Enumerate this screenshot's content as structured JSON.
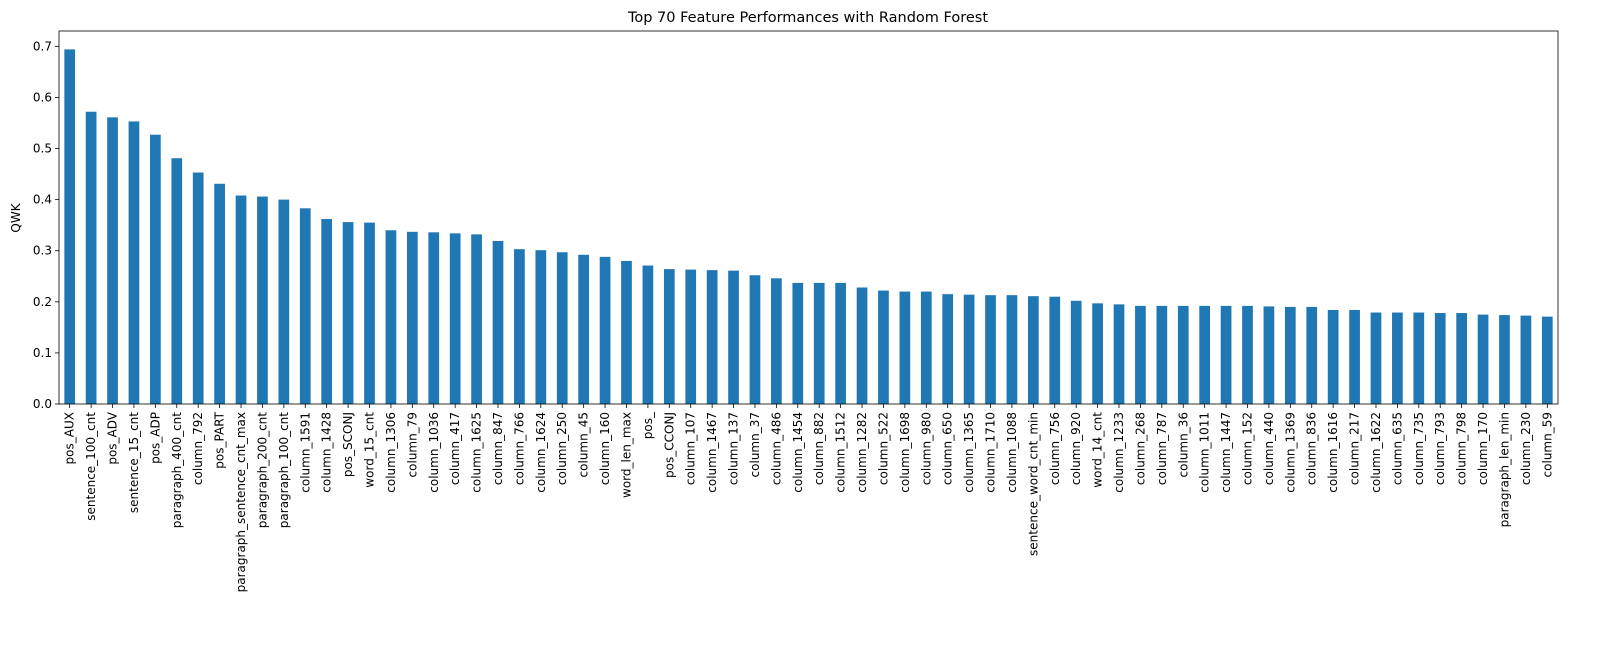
{
  "chart_data": {
    "type": "bar",
    "title": "Top 70 Feature Performances with Random Forest",
    "xlabel": "",
    "ylabel": "QWK",
    "ylim": [
      0,
      0.73
    ],
    "yticks": [
      "0.0",
      "0.1",
      "0.2",
      "0.3",
      "0.4",
      "0.5",
      "0.6",
      "0.7"
    ],
    "grid": false,
    "bar_color": "#1f77b4",
    "categories": [
      "pos_AUX",
      "sentence_100_cnt",
      "pos_ADV",
      "sentence_15_cnt",
      "pos_ADP",
      "paragraph_400_cnt",
      "column_792",
      "pos_PART",
      "paragraph_sentence_cnt_max",
      "paragraph_200_cnt",
      "paragraph_100_cnt",
      "column_1591",
      "column_1428",
      "pos_SCONJ",
      "word_15_cnt",
      "column_1306",
      "column_79",
      "column_1036",
      "column_417",
      "column_1625",
      "column_847",
      "column_766",
      "column_1624",
      "column_250",
      "column_45",
      "column_160",
      "word_len_max",
      "pos_",
      "pos_CCONJ",
      "column_107",
      "column_1467",
      "column_137",
      "column_37",
      "column_486",
      "column_1454",
      "column_882",
      "column_1512",
      "column_1282",
      "column_522",
      "column_1698",
      "column_980",
      "column_650",
      "column_1365",
      "column_1710",
      "column_1088",
      "sentence_word_cnt_min",
      "column_756",
      "column_920",
      "word_14_cnt",
      "column_1233",
      "column_268",
      "column_787",
      "column_36",
      "column_1011",
      "column_1447",
      "column_152",
      "column_440",
      "column_1369",
      "column_836",
      "column_1616",
      "column_217",
      "column_1622",
      "column_635",
      "column_735",
      "column_793",
      "column_798",
      "column_170",
      "paragraph_len_min",
      "column_230",
      "column_59"
    ],
    "values": [
      0.694,
      0.572,
      0.561,
      0.553,
      0.527,
      0.481,
      0.453,
      0.431,
      0.408,
      0.406,
      0.4,
      0.383,
      0.362,
      0.356,
      0.355,
      0.34,
      0.337,
      0.336,
      0.334,
      0.332,
      0.319,
      0.303,
      0.301,
      0.297,
      0.292,
      0.288,
      0.28,
      0.271,
      0.264,
      0.263,
      0.262,
      0.261,
      0.252,
      0.246,
      0.237,
      0.237,
      0.237,
      0.228,
      0.222,
      0.22,
      0.22,
      0.215,
      0.214,
      0.213,
      0.213,
      0.211,
      0.21,
      0.202,
      0.197,
      0.195,
      0.192,
      0.192,
      0.192,
      0.192,
      0.192,
      0.192,
      0.191,
      0.19,
      0.19,
      0.184,
      0.184,
      0.179,
      0.179,
      0.179,
      0.178,
      0.178,
      0.175,
      0.174,
      0.173,
      0.171
    ]
  }
}
